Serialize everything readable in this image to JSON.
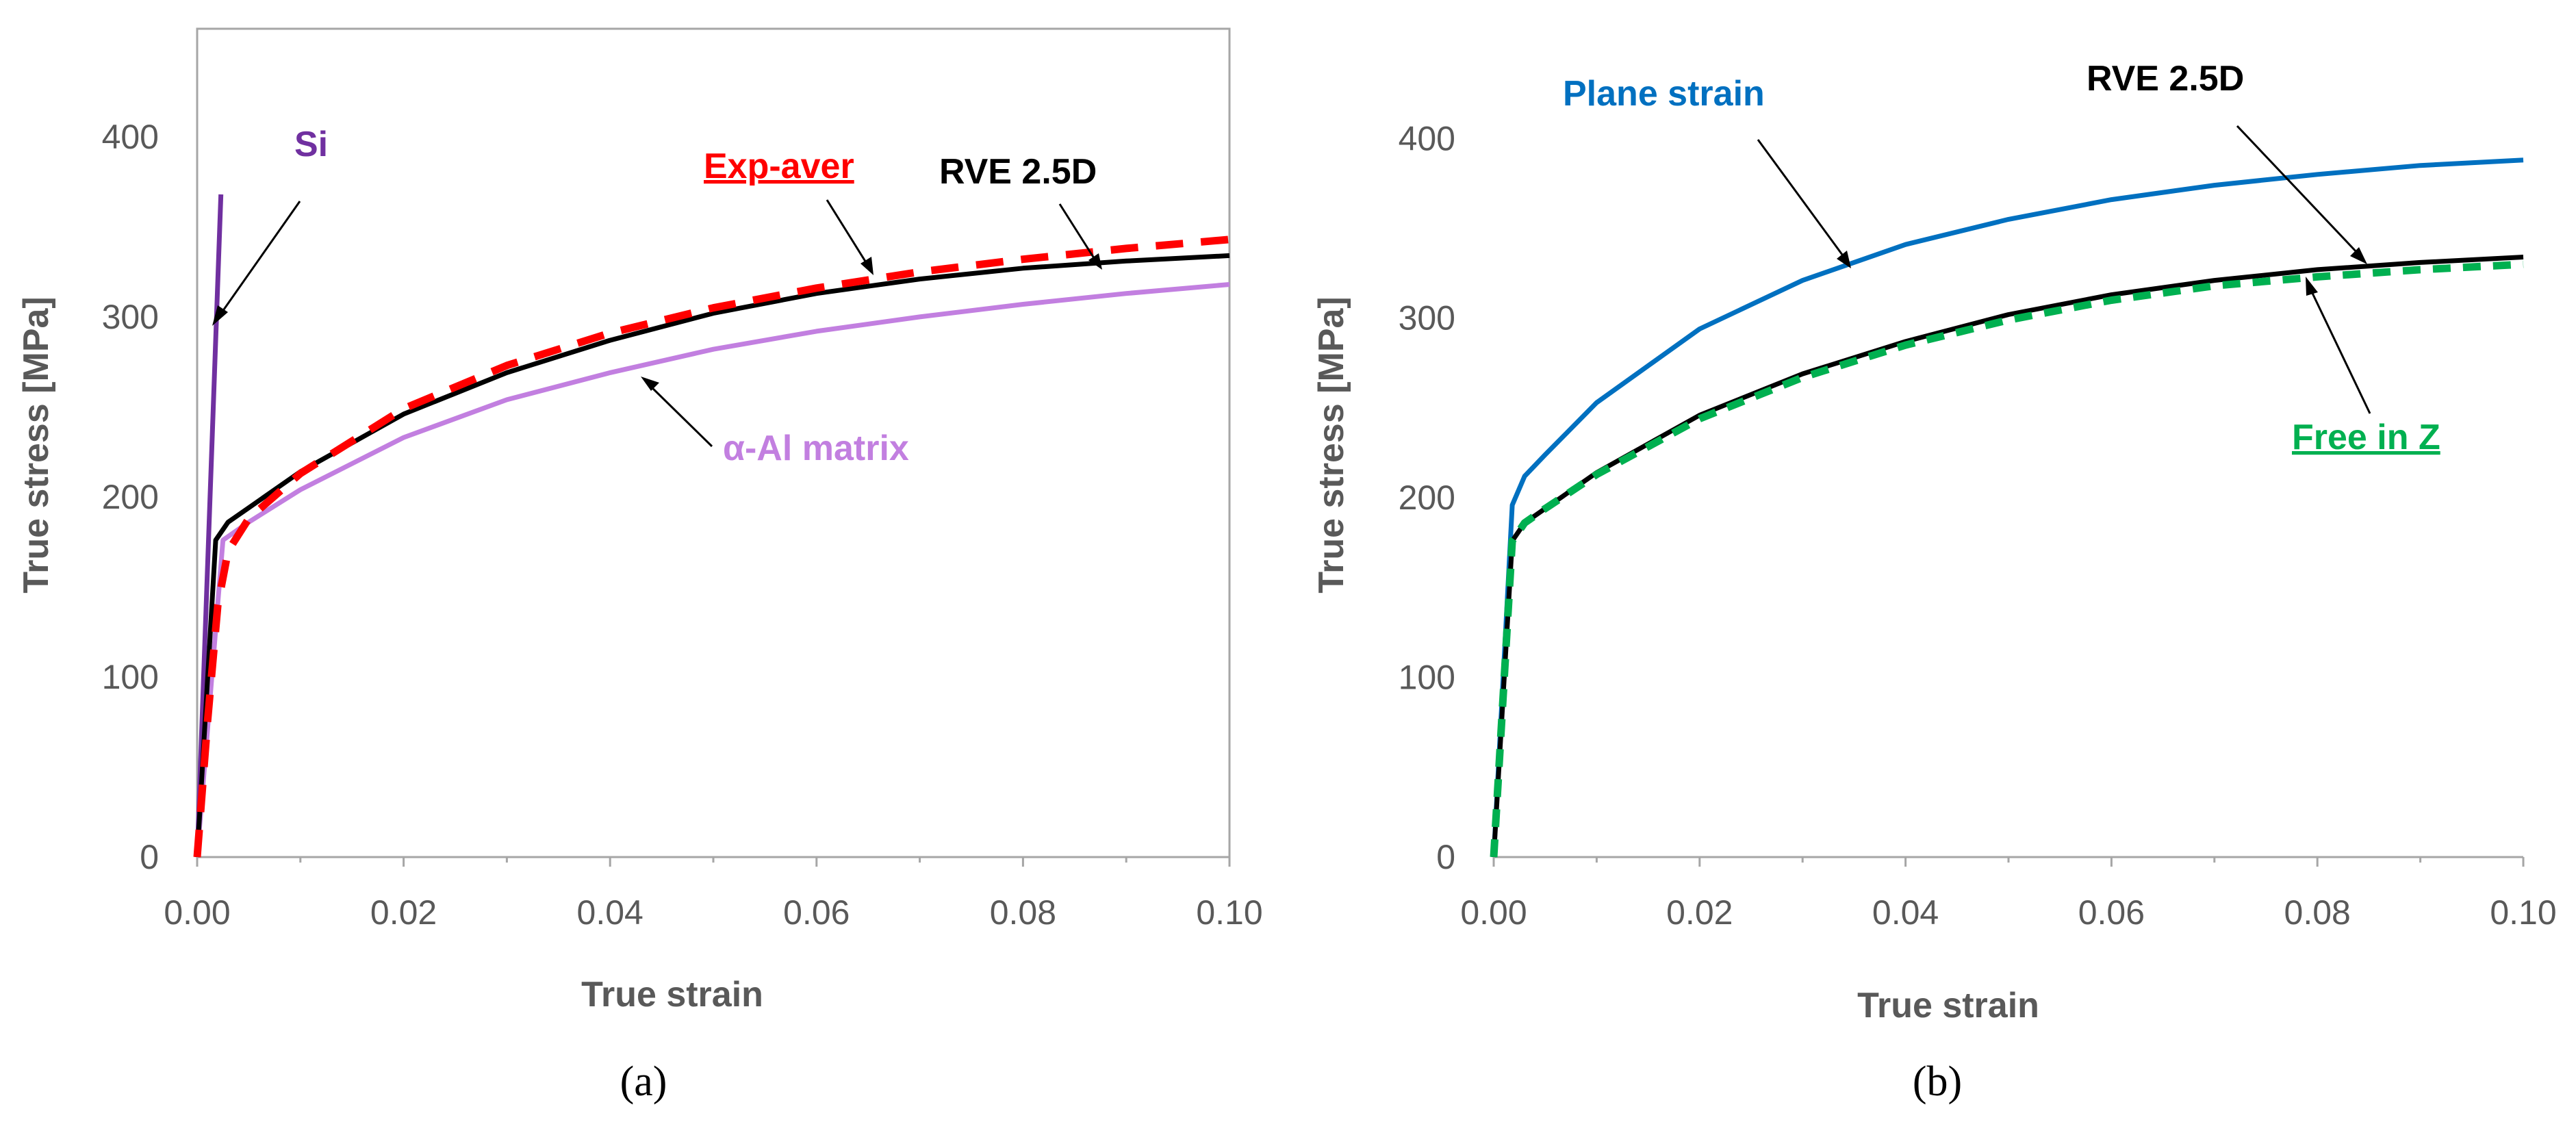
{
  "chart_data": [
    {
      "type": "line",
      "panel_label": "(a)",
      "xlabel": "True strain",
      "ylabel": "True stress [MPa]",
      "xlim": [
        0,
        0.1
      ],
      "ylim": [
        0,
        460
      ],
      "xticks": [
        "0.00",
        "0.02",
        "0.04",
        "0.06",
        "0.08",
        "0.10"
      ],
      "yticks": [
        "0",
        "100",
        "200",
        "300",
        "400"
      ],
      "series": [
        {
          "name": "Si",
          "color": "#7030A0",
          "dash": "solid",
          "x": [
            0,
            0.0023
          ],
          "y": [
            0,
            368
          ]
        },
        {
          "name": "α-Al matrix",
          "color": "#C27FE0",
          "dash": "solid",
          "x": [
            0,
            0.0025,
            0.005,
            0.01,
            0.02,
            0.03,
            0.04,
            0.05,
            0.06,
            0.07,
            0.08,
            0.09,
            0.1
          ],
          "y": [
            0,
            176,
            186,
            204,
            233,
            254,
            269,
            282,
            292,
            300,
            307,
            313,
            318
          ]
        },
        {
          "name": "RVE 2.5D",
          "color": "#000000",
          "dash": "solid",
          "x": [
            0,
            0.0018,
            0.003,
            0.005,
            0.01,
            0.02,
            0.03,
            0.04,
            0.05,
            0.06,
            0.07,
            0.08,
            0.09,
            0.1
          ],
          "y": [
            0,
            176,
            186,
            194,
            214,
            246,
            269,
            287,
            302,
            313,
            321,
            327,
            331,
            334
          ]
        },
        {
          "name": "Exp-aver",
          "color": "#FF0000",
          "dash": "dashed",
          "x": [
            0,
            0.001,
            0.002,
            0.003,
            0.005,
            0.01,
            0.02,
            0.03,
            0.04,
            0.05,
            0.06,
            0.07,
            0.08,
            0.09,
            0.1
          ],
          "y": [
            0,
            75,
            140,
            170,
            188,
            213,
            249,
            273,
            291,
            305,
            316,
            325,
            332,
            338,
            343
          ]
        }
      ],
      "annotations": [
        {
          "text": "Si",
          "points_to_series": "Si",
          "at": [
            0.0017,
            300
          ]
        },
        {
          "text": "Exp-aver",
          "points_to_series": "Exp-aver",
          "at": [
            0.066,
            325
          ]
        },
        {
          "text": "RVE 2.5D",
          "points_to_series": "RVE 2.5D",
          "at": [
            0.088,
            333
          ]
        },
        {
          "text": "α-Al matrix",
          "points_to_series": "α-Al matrix",
          "at": [
            0.044,
            268
          ]
        }
      ]
    },
    {
      "type": "line",
      "panel_label": "(b)",
      "xlabel": "True strain",
      "ylabel": "True stress [MPa]",
      "xlim": [
        0,
        0.1
      ],
      "ylim": [
        0,
        455
      ],
      "xticks": [
        "0.00",
        "0.02",
        "0.04",
        "0.06",
        "0.08",
        "0.10"
      ],
      "yticks": [
        "0",
        "100",
        "200",
        "300",
        "400"
      ],
      "series": [
        {
          "name": "Plane strain",
          "color": "#0070C0",
          "dash": "solid",
          "x": [
            0,
            0.0018,
            0.003,
            0.005,
            0.01,
            0.02,
            0.03,
            0.04,
            0.05,
            0.06,
            0.07,
            0.08,
            0.09,
            0.1
          ],
          "y": [
            0,
            196,
            212,
            224,
            253,
            294,
            321,
            341,
            355,
            366,
            374,
            380,
            385,
            388
          ]
        },
        {
          "name": "RVE 2.5D",
          "color": "#000000",
          "dash": "solid",
          "x": [
            0,
            0.0018,
            0.003,
            0.005,
            0.01,
            0.02,
            0.03,
            0.04,
            0.05,
            0.06,
            0.07,
            0.08,
            0.09,
            0.1
          ],
          "y": [
            0,
            176,
            186,
            194,
            214,
            246,
            269,
            287,
            302,
            313,
            321,
            327,
            331,
            334
          ]
        },
        {
          "name": "Free in Z",
          "color": "#00B050",
          "dash": "dashed",
          "x": [
            0,
            0.0018,
            0.003,
            0.005,
            0.01,
            0.02,
            0.03,
            0.04,
            0.05,
            0.06,
            0.07,
            0.08,
            0.09,
            0.1
          ],
          "y": [
            0,
            176,
            186,
            194,
            213,
            244,
            267,
            285,
            299,
            310,
            318,
            323,
            327,
            330
          ]
        }
      ],
      "annotations": [
        {
          "text": "Plane strain",
          "points_to_series": "Plane strain",
          "at": [
            0.035,
            328
          ]
        },
        {
          "text": "RVE 2.5D",
          "points_to_series": "RVE 2.5D",
          "at": [
            0.085,
            330
          ]
        },
        {
          "text": "Free in Z",
          "points_to_series": "Free in Z",
          "at": [
            0.079,
            322
          ]
        }
      ]
    }
  ]
}
